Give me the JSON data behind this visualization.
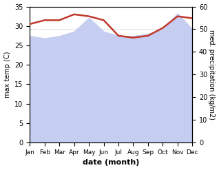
{
  "months": [
    "Jan",
    "Feb",
    "Mar",
    "Apr",
    "May",
    "Jun",
    "Jul",
    "Aug",
    "Sep",
    "Oct",
    "Nov",
    "Dec"
  ],
  "x": [
    0,
    1,
    2,
    3,
    4,
    5,
    6,
    7,
    8,
    9,
    10,
    11
  ],
  "max_temp": [
    30.5,
    31.5,
    31.5,
    33.0,
    32.5,
    31.5,
    27.5,
    27.0,
    27.5,
    29.5,
    32.5,
    32.0
  ],
  "precipitation": [
    47,
    46,
    47,
    49,
    55,
    49,
    47,
    47,
    48,
    50,
    57,
    50
  ],
  "temp_color": "#c0392b",
  "precip_fill_color": "#c5cdf0",
  "temp_ylim": [
    0,
    35
  ],
  "precip_ylim": [
    0,
    60
  ],
  "temp_yticks": [
    0,
    5,
    10,
    15,
    20,
    25,
    30,
    35
  ],
  "precip_yticks": [
    0,
    10,
    20,
    30,
    40,
    50,
    60
  ],
  "xlabel": "date (month)",
  "ylabel_left": "max temp (C)",
  "ylabel_right": "med. precipitation (kg/m2)",
  "temp_linewidth": 1.8,
  "background_color": "#ffffff"
}
